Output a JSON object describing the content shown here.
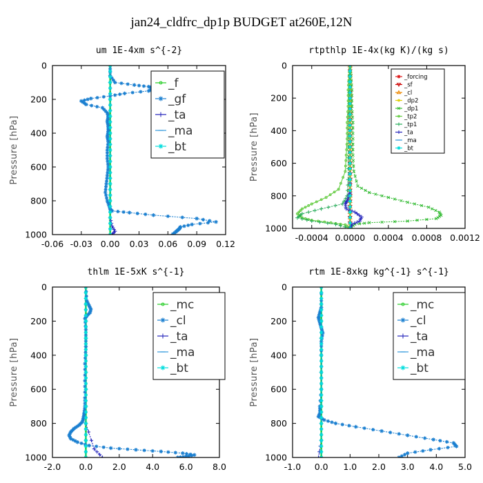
{
  "title": "jan24_cldfrc_dp1p  BUDGET at260E,12N",
  "chart_data": [
    {
      "type": "line",
      "title": "um   1E-4xm s^{-2}",
      "ylabel": "Pressure [hPa]",
      "xlim": [
        -0.06,
        0.12
      ],
      "ylim": [
        1000,
        0
      ],
      "xticks": [
        "-0.06",
        "-0.03",
        "0.00",
        "0.03",
        "0.06",
        "0.09",
        "0.12"
      ],
      "xtick_values": [
        -0.06,
        -0.03,
        0.0,
        0.03,
        0.06,
        0.09,
        0.12
      ],
      "yticks": [
        "0",
        "200",
        "400",
        "600",
        "800",
        "1000"
      ],
      "ytick_values": [
        0,
        200,
        400,
        600,
        800,
        1000
      ],
      "legend_position": "top-right",
      "series": [
        {
          "name": "_f",
          "color": "#22cc22",
          "marker": "o",
          "x": [
            0,
            0,
            0,
            0,
            0,
            0,
            0,
            0,
            0,
            0,
            0
          ],
          "y": [
            0,
            100,
            200,
            300,
            400,
            500,
            600,
            700,
            800,
            900,
            1000
          ]
        },
        {
          "name": "_gf",
          "color": "#1a7fd0",
          "marker": "*",
          "x": [
            0,
            0.0,
            0.005,
            0.025,
            0.04,
            0.045,
            0.04,
            0.015,
            0.0,
            -0.02,
            -0.03,
            -0.025,
            -0.008,
            -0.003,
            -0.002,
            -0.003,
            -0.002,
            -0.002,
            -0.003,
            -0.002,
            -0.003,
            -0.003,
            -0.002,
            -0.003,
            -0.004,
            -0.005,
            -0.003,
            -0.001,
            0.0,
            0.002,
            0.02,
            0.045,
            0.09,
            0.11,
            0.085,
            0.073,
            0.072,
            0.07,
            0.068,
            0.065
          ],
          "y": [
            0,
            60,
            100,
            115,
            125,
            135,
            150,
            165,
            180,
            195,
            210,
            230,
            250,
            280,
            300,
            330,
            360,
            390,
            420,
            450,
            500,
            550,
            600,
            650,
            700,
            750,
            800,
            830,
            850,
            860,
            870,
            885,
            905,
            925,
            940,
            955,
            965,
            975,
            985,
            998
          ]
        },
        {
          "name": "_ta",
          "color": "#2222bb",
          "marker": "+",
          "x": [
            0,
            0,
            0,
            0,
            0,
            0,
            0,
            0,
            0,
            0,
            0.002,
            0.005,
            0.002
          ],
          "y": [
            0,
            100,
            200,
            300,
            400,
            500,
            600,
            700,
            800,
            900,
            950,
            980,
            1000
          ]
        },
        {
          "name": "_ma",
          "color": "#3399dd",
          "marker": "-",
          "x": [
            0,
            0,
            0,
            0,
            0,
            0,
            0,
            0,
            0,
            0,
            0
          ],
          "y": [
            0,
            100,
            200,
            300,
            400,
            500,
            600,
            700,
            800,
            900,
            1000
          ]
        },
        {
          "name": "_bt",
          "color": "#00dddd",
          "marker": "*",
          "x": [
            0,
            0,
            0,
            0,
            0,
            0,
            0,
            0,
            0,
            0,
            0
          ],
          "y": [
            0,
            100,
            200,
            300,
            400,
            500,
            600,
            700,
            800,
            900,
            1000
          ]
        }
      ]
    },
    {
      "type": "line",
      "title": "rtpthlp   1E-4x(kg K)/(kg s)",
      "ylabel": "Pressure [hPa]",
      "xlim": [
        -0.0006,
        0.0012
      ],
      "ylim": [
        1000,
        0
      ],
      "xticks": [
        "-0.0004",
        "0.0000",
        "0.0004",
        "0.0008",
        "0.0012"
      ],
      "xtick_values": [
        -0.0004,
        0.0,
        0.0004,
        0.0008,
        0.0012
      ],
      "yticks": [
        "0",
        "200",
        "400",
        "600",
        "800",
        "1000"
      ],
      "ytick_values": [
        0,
        200,
        400,
        600,
        800,
        1000
      ],
      "legend_position": "top-right",
      "series": [
        {
          "name": "_forcing",
          "color": "#dd1111",
          "marker": "*",
          "x": [
            0,
            0,
            0,
            0,
            0,
            0,
            0,
            0,
            0,
            0,
            0
          ],
          "y": [
            0,
            100,
            200,
            300,
            400,
            500,
            600,
            700,
            800,
            900,
            1000
          ]
        },
        {
          "name": "_sf",
          "color": "#cc0000",
          "marker": "v",
          "x": [
            0,
            0,
            0,
            0,
            0,
            0,
            0,
            0,
            0,
            0,
            0
          ],
          "y": [
            0,
            100,
            200,
            300,
            400,
            500,
            600,
            700,
            800,
            900,
            1000
          ]
        },
        {
          "name": "_cl",
          "color": "#ee8800",
          "marker": "^",
          "x": [
            0,
            0,
            0,
            0,
            0,
            0,
            0,
            0,
            0,
            0,
            0
          ],
          "y": [
            0,
            100,
            200,
            300,
            400,
            500,
            600,
            700,
            800,
            900,
            1000
          ]
        },
        {
          "name": "_dp2",
          "color": "#ddcc00",
          "marker": "o",
          "x": [
            0,
            0,
            0,
            0,
            0,
            0,
            0,
            0,
            0,
            0,
            0
          ],
          "y": [
            0,
            100,
            200,
            300,
            400,
            500,
            600,
            700,
            800,
            900,
            1000
          ]
        },
        {
          "name": "_dp1",
          "color": "#33bb33",
          "marker": "x",
          "x": [
            0,
            1e-05,
            2e-05,
            2e-05,
            3e-05,
            3e-05,
            3e-05,
            4e-05,
            8e-05,
            0.0002,
            0.0004,
            0.0006,
            0.00082,
            0.00093,
            0.00095,
            0.0009,
            0.0006,
            0.0002,
            5e-05,
            0.0
          ],
          "y": [
            0,
            60,
            150,
            250,
            350,
            450,
            550,
            650,
            740,
            780,
            810,
            840,
            870,
            900,
            920,
            940,
            955,
            965,
            975,
            1000
          ]
        },
        {
          "name": "_tp2",
          "color": "#66cc44",
          "marker": "o",
          "x": [
            0,
            -1e-05,
            -2e-05,
            -2e-05,
            -3e-05,
            -3e-05,
            -4e-05,
            -5e-05,
            -0.00012,
            -0.00025,
            -0.0004,
            -0.0005,
            -0.00055,
            -0.0005,
            -0.0004,
            -0.0002,
            -5e-05,
            0.0
          ],
          "y": [
            0,
            60,
            150,
            250,
            350,
            450,
            550,
            650,
            760,
            810,
            850,
            880,
            910,
            935,
            950,
            965,
            978,
            1000
          ]
        },
        {
          "name": "_tp1",
          "color": "#22aa55",
          "marker": "+",
          "x": [
            0,
            -1e-05,
            -1e-05,
            -2e-05,
            -2e-05,
            -3e-05,
            -8e-05,
            -0.0003,
            -0.0005,
            -0.00055,
            -0.0004,
            -0.00015,
            0.0
          ],
          "y": [
            0,
            100,
            300,
            500,
            700,
            800,
            850,
            880,
            910,
            935,
            955,
            975,
            1000
          ]
        },
        {
          "name": "_ta",
          "color": "#2222bb",
          "marker": "+",
          "x": [
            0,
            0,
            0,
            0,
            0,
            -1e-05,
            -3e-05,
            -5e-05,
            -4e-05,
            5e-05,
            0.00012,
            0.0001,
            2e-05,
            0.0
          ],
          "y": [
            0,
            200,
            400,
            600,
            780,
            800,
            830,
            850,
            880,
            900,
            930,
            955,
            975,
            1000
          ]
        },
        {
          "name": "_ma",
          "color": "#3399dd",
          "marker": "-",
          "x": [
            0,
            0,
            0,
            0,
            0,
            0,
            0,
            0,
            0,
            0,
            0
          ],
          "y": [
            0,
            100,
            200,
            300,
            400,
            500,
            600,
            700,
            800,
            900,
            1000
          ]
        },
        {
          "name": "_bt",
          "color": "#00dddd",
          "marker": "*",
          "x": [
            0,
            0,
            0,
            0,
            0,
            0,
            0,
            0,
            0,
            0,
            0
          ],
          "y": [
            0,
            100,
            200,
            300,
            400,
            500,
            600,
            700,
            800,
            900,
            1000
          ]
        }
      ]
    },
    {
      "type": "line",
      "title": "thlm   1E-5xK s^{-1}",
      "ylabel": "Pressure [hPa]",
      "xlim": [
        -2.0,
        8.0
      ],
      "ylim": [
        1000,
        0
      ],
      "xticks": [
        "-2.0",
        "0.0",
        "2.0",
        "4.0",
        "6.0",
        "8.0"
      ],
      "xtick_values": [
        -2.0,
        0.0,
        2.0,
        4.0,
        6.0,
        8.0
      ],
      "yticks": [
        "0",
        "200",
        "400",
        "600",
        "800",
        "1000"
      ],
      "ytick_values": [
        0,
        200,
        400,
        600,
        800,
        1000
      ],
      "legend_position": "top-right",
      "series": [
        {
          "name": "_mc",
          "color": "#22cc22",
          "marker": "o",
          "x": [
            0,
            0,
            0,
            0,
            0,
            0,
            0,
            0,
            0,
            0,
            0
          ],
          "y": [
            0,
            100,
            200,
            300,
            400,
            500,
            600,
            700,
            800,
            900,
            1000
          ]
        },
        {
          "name": "_cl",
          "color": "#1a7fd0",
          "marker": "*",
          "x": [
            0,
            0.05,
            0.2,
            0.3,
            0.25,
            0.05,
            -0.05,
            0.0,
            0.0,
            -0.05,
            -0.05,
            -0.05,
            -0.05,
            -0.1,
            -0.15,
            -0.2,
            -0.4,
            -0.7,
            -0.9,
            -1.0,
            -0.9,
            -0.5,
            0.2,
            1.5,
            3.0,
            4.5,
            5.8,
            6.5,
            6.0,
            5.5
          ],
          "y": [
            0,
            80,
            110,
            130,
            150,
            170,
            185,
            250,
            350,
            450,
            550,
            650,
            700,
            740,
            770,
            790,
            810,
            830,
            850,
            870,
            890,
            910,
            930,
            945,
            955,
            965,
            975,
            985,
            995,
            1000
          ]
        },
        {
          "name": "_ta",
          "color": "#2222bb",
          "marker": "+",
          "x": [
            0,
            0,
            0,
            0,
            0,
            0,
            0,
            0,
            0,
            0.5,
            1.0
          ],
          "y": [
            0,
            100,
            200,
            300,
            400,
            500,
            600,
            700,
            800,
            950,
            1000
          ]
        },
        {
          "name": "_ma",
          "color": "#3399dd",
          "marker": "-",
          "x": [
            0,
            0,
            0,
            0,
            0,
            0,
            0,
            0,
            0,
            0,
            0
          ],
          "y": [
            0,
            100,
            200,
            300,
            400,
            500,
            600,
            700,
            800,
            900,
            1000
          ]
        },
        {
          "name": "_bt",
          "color": "#00dddd",
          "marker": "*",
          "x": [
            0,
            0,
            0,
            0,
            0,
            0,
            0,
            0,
            0,
            0,
            0
          ],
          "y": [
            0,
            100,
            200,
            300,
            400,
            500,
            600,
            700,
            800,
            900,
            1000
          ]
        }
      ]
    },
    {
      "type": "line",
      "title": "rtm   1E-8xkg kg^{-1} s^{-1}",
      "ylabel": "Pressure [hPa]",
      "xlim": [
        -1.0,
        5.0
      ],
      "ylim": [
        1000,
        0
      ],
      "xticks": [
        "-1.0",
        "0.0",
        "1.0",
        "2.0",
        "3.0",
        "4.0",
        "5.0"
      ],
      "xtick_values": [
        -1.0,
        0.0,
        1.0,
        2.0,
        3.0,
        4.0,
        5.0
      ],
      "yticks": [
        "0",
        "200",
        "400",
        "600",
        "800",
        "1000"
      ],
      "ytick_values": [
        0,
        200,
        400,
        600,
        800,
        1000
      ],
      "legend_position": "top-right",
      "series": [
        {
          "name": "_mc",
          "color": "#22cc22",
          "marker": "o",
          "x": [
            0,
            0,
            0,
            0,
            0,
            0,
            0,
            0,
            0,
            0,
            0
          ],
          "y": [
            0,
            100,
            200,
            300,
            400,
            500,
            600,
            700,
            800,
            900,
            1000
          ]
        },
        {
          "name": "_cl",
          "color": "#1a7fd0",
          "marker": "*",
          "x": [
            0,
            0.0,
            -0.05,
            -0.1,
            -0.05,
            0.0,
            0.05,
            0.0,
            0.0,
            0.0,
            0.0,
            -0.05,
            -0.05,
            -0.1,
            0.1,
            0.5,
            1.2,
            2.1,
            3.0,
            3.9,
            4.6,
            4.7,
            3.8,
            3.0,
            2.7
          ],
          "y": [
            0,
            120,
            150,
            180,
            210,
            240,
            270,
            320,
            400,
            500,
            600,
            700,
            740,
            760,
            780,
            800,
            820,
            845,
            870,
            895,
            915,
            935,
            955,
            975,
            1000
          ]
        },
        {
          "name": "_ta",
          "color": "#2222bb",
          "marker": "+",
          "x": [
            0,
            0,
            0,
            0,
            0,
            0,
            0,
            0,
            0,
            0,
            -0.1
          ],
          "y": [
            0,
            100,
            200,
            300,
            400,
            500,
            600,
            700,
            800,
            900,
            1000
          ]
        },
        {
          "name": "_ma",
          "color": "#3399dd",
          "marker": "-",
          "x": [
            0,
            0,
            0,
            0,
            0,
            0,
            0,
            0,
            0,
            0,
            0
          ],
          "y": [
            0,
            100,
            200,
            300,
            400,
            500,
            600,
            700,
            800,
            900,
            1000
          ]
        },
        {
          "name": "_bt",
          "color": "#00dddd",
          "marker": "*",
          "x": [
            0,
            0,
            0,
            0,
            0,
            0,
            0,
            0,
            0,
            0,
            0
          ],
          "y": [
            0,
            100,
            200,
            300,
            400,
            500,
            600,
            700,
            800,
            900,
            1000
          ]
        }
      ]
    }
  ]
}
